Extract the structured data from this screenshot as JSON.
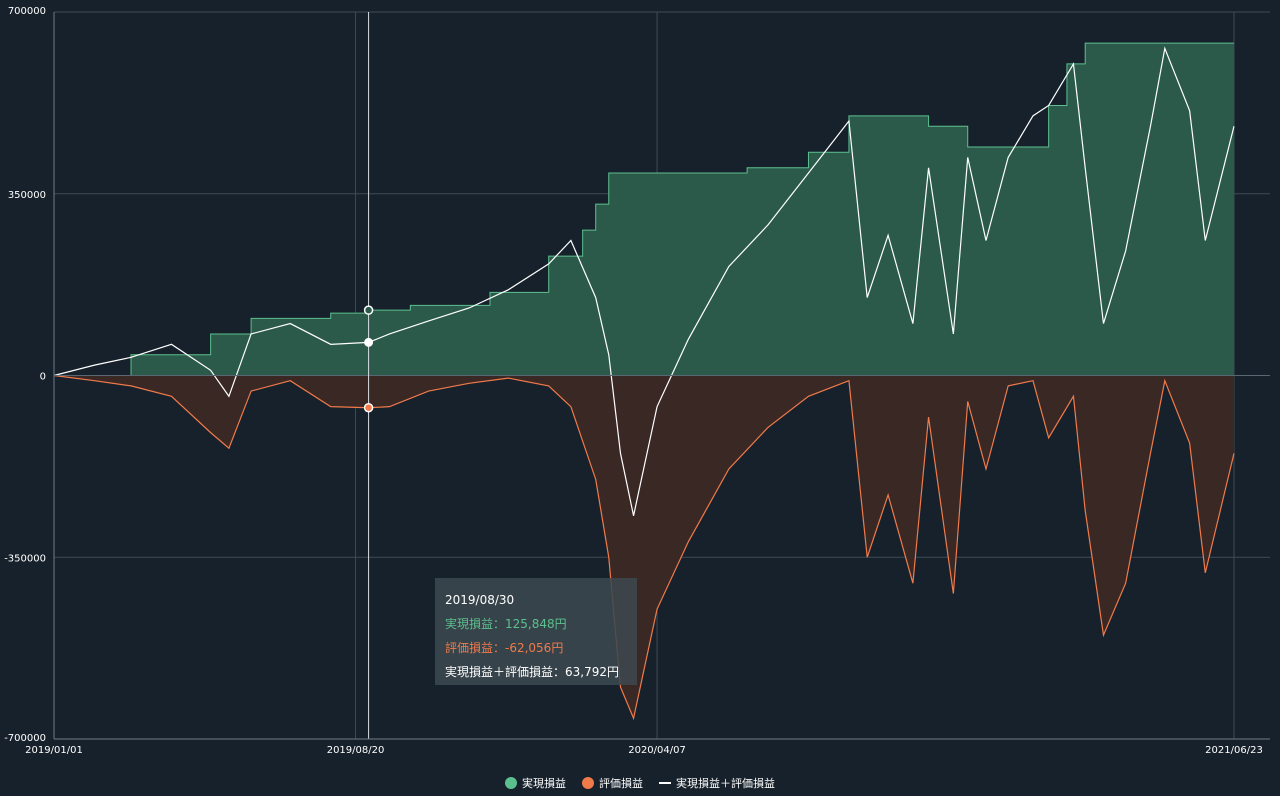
{
  "chart_data": {
    "type": "area",
    "title": "",
    "xlabel": "",
    "ylabel": "",
    "ylim": [
      -700000,
      700000
    ],
    "y_ticks": [
      "700000",
      "350000",
      "0",
      "-350000",
      "-700000"
    ],
    "x_ticks": [
      "2019/01/01",
      "2019/08/20",
      "2020/04/07",
      "2021/06/23"
    ],
    "x_range": [
      "2019/01/01",
      "2021/06/23"
    ],
    "grid": true,
    "legend_position": "bottom-center",
    "series": [
      {
        "name": "実現損益",
        "color": "#5cc08e",
        "x": [
          "2019/01/01",
          "2019/03/01",
          "2019/05/01",
          "2019/06/01",
          "2019/08/01",
          "2019/08/30",
          "2019/10/01",
          "2019/12/01",
          "2020/01/15",
          "2020/02/10",
          "2020/02/20",
          "2020/03/01",
          "2020/05/01",
          "2020/06/15",
          "2020/08/01",
          "2020/09/01",
          "2020/10/01",
          "2020/11/01",
          "2020/12/01",
          "2021/01/15",
          "2021/02/01",
          "2021/02/15",
          "2021/03/01",
          "2021/06/23"
        ],
        "values": [
          0,
          40000,
          80000,
          110000,
          120000,
          125848,
          135000,
          160000,
          230000,
          280000,
          330000,
          390000,
          390000,
          400000,
          430000,
          500000,
          500000,
          480000,
          440000,
          440000,
          520000,
          600000,
          640000,
          640000
        ]
      },
      {
        "name": "評価損益",
        "color": "#f07a4a",
        "x": [
          "2019/01/01",
          "2019/02/01",
          "2019/03/01",
          "2019/04/01",
          "2019/05/01",
          "2019/05/15",
          "2019/06/01",
          "2019/07/01",
          "2019/08/01",
          "2019/08/30",
          "2019/09/15",
          "2019/10/15",
          "2019/11/15",
          "2019/12/15",
          "2020/01/15",
          "2020/02/01",
          "2020/02/20",
          "2020/03/01",
          "2020/03/10",
          "2020/03/20",
          "2020/04/07",
          "2020/05/01",
          "2020/06/01",
          "2020/07/01",
          "2020/08/01",
          "2020/09/01",
          "2020/09/15",
          "2020/10/01",
          "2020/10/20",
          "2020/11/01",
          "2020/11/20",
          "2020/12/01",
          "2020/12/15",
          "2021/01/01",
          "2021/01/20",
          "2021/02/01",
          "2021/02/20",
          "2021/03/01",
          "2021/03/15",
          "2021/04/01",
          "2021/04/20",
          "2021/05/01",
          "2021/05/20",
          "2021/06/01",
          "2021/06/23"
        ],
        "values": [
          0,
          -10000,
          -20000,
          -40000,
          -110000,
          -140000,
          -30000,
          -10000,
          -60000,
          -62056,
          -60000,
          -30000,
          -15000,
          -5000,
          -20000,
          -60000,
          -200000,
          -350000,
          -600000,
          -660000,
          -450000,
          -320000,
          -180000,
          -100000,
          -40000,
          -10000,
          -350000,
          -230000,
          -400000,
          -80000,
          -420000,
          -50000,
          -180000,
          -20000,
          -10000,
          -120000,
          -40000,
          -260000,
          -500000,
          -400000,
          -150000,
          -10000,
          -130000,
          -380000,
          -150000
        ]
      },
      {
        "name": "実現損益＋評価損益",
        "color": "#ffffff",
        "x": [
          "2019/01/01",
          "2019/02/01",
          "2019/03/01",
          "2019/04/01",
          "2019/05/01",
          "2019/05/15",
          "2019/06/01",
          "2019/07/01",
          "2019/08/01",
          "2019/08/30",
          "2019/09/15",
          "2019/10/15",
          "2019/11/15",
          "2019/12/15",
          "2020/01/15",
          "2020/02/01",
          "2020/02/20",
          "2020/03/01",
          "2020/03/10",
          "2020/03/20",
          "2020/04/07",
          "2020/05/01",
          "2020/06/01",
          "2020/07/01",
          "2020/08/01",
          "2020/09/01",
          "2020/09/15",
          "2020/10/01",
          "2020/10/20",
          "2020/11/01",
          "2020/11/20",
          "2020/12/01",
          "2020/12/15",
          "2021/01/01",
          "2021/01/20",
          "2021/02/01",
          "2021/02/20",
          "2021/03/01",
          "2021/03/15",
          "2021/04/01",
          "2021/04/20",
          "2021/05/01",
          "2021/05/20",
          "2021/06/01",
          "2021/06/23"
        ],
        "values": [
          0,
          20000,
          35000,
          60000,
          10000,
          -40000,
          80000,
          100000,
          60000,
          63792,
          80000,
          105000,
          130000,
          165000,
          215000,
          260000,
          150000,
          40000,
          -150000,
          -270000,
          -60000,
          70000,
          210000,
          290000,
          390000,
          490000,
          150000,
          270000,
          100000,
          400000,
          80000,
          420000,
          260000,
          420000,
          500000,
          520000,
          600000,
          400000,
          100000,
          240000,
          480000,
          630000,
          510000,
          260000,
          480000
        ]
      }
    ]
  },
  "tooltip": {
    "date": "2019/08/30",
    "realized": "実現損益：125,848円",
    "unrealized": "評価損益：-62,056円",
    "total": "実現損益＋評価損益：63,792円"
  },
  "legend": {
    "items": [
      {
        "label": "実現損益",
        "color": "#5cc08e",
        "icon": "circle"
      },
      {
        "label": "評価損益",
        "color": "#f07a4a",
        "icon": "circle"
      },
      {
        "label": "実現損益＋評価損益",
        "color": "#ffffff",
        "icon": "line"
      }
    ]
  }
}
